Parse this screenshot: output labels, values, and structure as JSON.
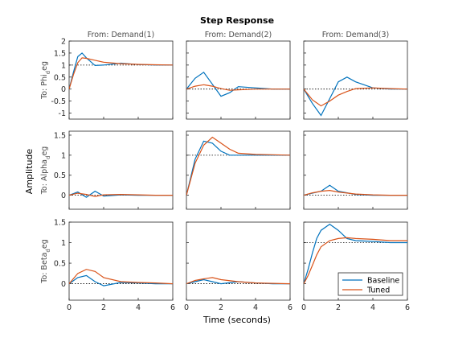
{
  "chart_data": {
    "type": "line",
    "title": "Step Response",
    "xlabel": "Time (seconds)",
    "ylabel": "Amplitude",
    "grid": false,
    "legend_placement": "bottom-right (in bottom-right subplot)",
    "colors": {
      "Baseline": "#0072BD",
      "Tuned": "#D95319",
      "reference": "#000000"
    },
    "xlim": [
      0,
      6
    ],
    "xticks": [
      0,
      2,
      4,
      6
    ],
    "columns": [
      "From: Demand(1)",
      "From: Demand(2)",
      "From: Demand(3)"
    ],
    "rows": [
      {
        "label": "To: Phi_deg",
        "ylim": [
          -1.25,
          2.0
        ],
        "yticks": [
          -1,
          -0.5,
          0,
          0.5,
          1,
          1.5,
          2
        ]
      },
      {
        "label": "To: Alpha_deg",
        "ylim": [
          -0.35,
          1.6
        ],
        "yticks": [
          0,
          0.5,
          1,
          1.5
        ]
      },
      {
        "label": "To: Beta_deg",
        "ylim": [
          -0.4,
          1.5
        ],
        "yticks": [
          0,
          0.5,
          1,
          1.5
        ]
      }
    ],
    "legend": [
      "Baseline",
      "Tuned"
    ],
    "panels": [
      {
        "row": 0,
        "col": 0,
        "reference": 1,
        "series": [
          {
            "name": "Baseline",
            "x": [
              0,
              0.25,
              0.5,
              0.75,
              1,
              1.5,
              2,
              3,
              4,
              5,
              6
            ],
            "y": [
              0,
              0.7,
              1.35,
              1.5,
              1.3,
              0.98,
              1.0,
              1.08,
              1.02,
              1.0,
              1.0
            ]
          },
          {
            "name": "Tuned",
            "x": [
              0,
              0.25,
              0.5,
              0.75,
              1,
              1.5,
              2,
              3,
              4,
              5,
              6
            ],
            "y": [
              0,
              0.6,
              1.1,
              1.3,
              1.28,
              1.2,
              1.12,
              1.06,
              1.03,
              1.01,
              1.0
            ]
          }
        ]
      },
      {
        "row": 0,
        "col": 1,
        "reference": 0,
        "series": [
          {
            "name": "Baseline",
            "x": [
              0,
              0.5,
              1,
              1.5,
              2,
              2.5,
              3,
              4,
              5,
              6
            ],
            "y": [
              0,
              0.45,
              0.7,
              0.2,
              -0.3,
              -0.15,
              0.1,
              0.05,
              0,
              0
            ]
          },
          {
            "name": "Tuned",
            "x": [
              0,
              0.5,
              1,
              1.5,
              2,
              2.5,
              3,
              4,
              5,
              6
            ],
            "y": [
              0,
              0.12,
              0.18,
              0.12,
              0.02,
              -0.05,
              -0.03,
              0,
              0,
              0
            ]
          }
        ]
      },
      {
        "row": 0,
        "col": 2,
        "reference": 0,
        "series": [
          {
            "name": "Baseline",
            "x": [
              0,
              0.5,
              1,
              1.5,
              2,
              2.5,
              3,
              4,
              5,
              6
            ],
            "y": [
              0,
              -0.6,
              -1.1,
              -0.4,
              0.3,
              0.5,
              0.3,
              0.05,
              0,
              0
            ]
          },
          {
            "name": "Tuned",
            "x": [
              0,
              0.5,
              1,
              1.5,
              2,
              2.5,
              3,
              4,
              5,
              6
            ],
            "y": [
              0,
              -0.45,
              -0.7,
              -0.5,
              -0.25,
              -0.1,
              0.02,
              0.05,
              0.02,
              0
            ]
          }
        ]
      },
      {
        "row": 1,
        "col": 0,
        "reference": 0,
        "series": [
          {
            "name": "Baseline",
            "x": [
              0,
              0.5,
              1,
              1.5,
              2,
              3,
              4,
              5,
              6
            ],
            "y": [
              0,
              0.08,
              -0.05,
              0.1,
              -0.02,
              0.01,
              0,
              0,
              0
            ]
          },
          {
            "name": "Tuned",
            "x": [
              0,
              0.5,
              1,
              1.5,
              2,
              3,
              4,
              5,
              6
            ],
            "y": [
              0,
              0.05,
              0.02,
              -0.03,
              0.01,
              0.02,
              0.01,
              0,
              0
            ]
          }
        ]
      },
      {
        "row": 1,
        "col": 1,
        "reference": 1,
        "series": [
          {
            "name": "Baseline",
            "x": [
              0,
              0.25,
              0.5,
              1,
              1.5,
              2,
              2.5,
              3,
              4,
              5,
              6
            ],
            "y": [
              0,
              0.45,
              0.9,
              1.35,
              1.3,
              1.1,
              1.0,
              1.0,
              1.0,
              1.0,
              1.0
            ]
          },
          {
            "name": "Tuned",
            "x": [
              0,
              0.25,
              0.5,
              1,
              1.5,
              2,
              2.5,
              3,
              4,
              5,
              6
            ],
            "y": [
              0,
              0.4,
              0.8,
              1.25,
              1.45,
              1.3,
              1.15,
              1.05,
              1.02,
              1.01,
              1.0
            ]
          }
        ]
      },
      {
        "row": 1,
        "col": 2,
        "reference": 0,
        "series": [
          {
            "name": "Baseline",
            "x": [
              0,
              0.5,
              1,
              1.5,
              2,
              3,
              4,
              5,
              6
            ],
            "y": [
              0,
              0.05,
              0.1,
              0.25,
              0.1,
              0.02,
              0,
              0,
              0
            ]
          },
          {
            "name": "Tuned",
            "x": [
              0,
              0.5,
              1,
              1.5,
              2,
              3,
              4,
              5,
              6
            ],
            "y": [
              0,
              0.06,
              0.1,
              0.12,
              0.08,
              0.03,
              0.01,
              0,
              0
            ]
          }
        ]
      },
      {
        "row": 2,
        "col": 0,
        "reference": 0,
        "series": [
          {
            "name": "Baseline",
            "x": [
              0,
              0.5,
              1,
              1.5,
              2,
              3,
              4,
              5,
              6
            ],
            "y": [
              0,
              0.15,
              0.2,
              0.05,
              -0.05,
              0.03,
              0.02,
              0,
              0
            ]
          },
          {
            "name": "Tuned",
            "x": [
              0,
              0.5,
              1,
              1.5,
              2,
              3,
              4,
              5,
              6
            ],
            "y": [
              0,
              0.25,
              0.35,
              0.3,
              0.15,
              0.05,
              0.03,
              0.02,
              0
            ]
          }
        ]
      },
      {
        "row": 2,
        "col": 1,
        "reference": 0,
        "series": [
          {
            "name": "Baseline",
            "x": [
              0,
              0.5,
              1,
              1.5,
              2,
              3,
              4,
              5,
              6
            ],
            "y": [
              0,
              0.05,
              0.1,
              0.05,
              0.0,
              0.05,
              0.02,
              0,
              0
            ]
          },
          {
            "name": "Tuned",
            "x": [
              0,
              0.5,
              1,
              1.5,
              2,
              3,
              4,
              5,
              6
            ],
            "y": [
              0,
              0.08,
              0.12,
              0.15,
              0.1,
              0.05,
              0.02,
              0.01,
              0
            ]
          }
        ]
      },
      {
        "row": 2,
        "col": 2,
        "reference": 1,
        "series": [
          {
            "name": "Baseline",
            "x": [
              0,
              0.25,
              0.5,
              0.75,
              1,
              1.5,
              2,
              2.5,
              3,
              4,
              5,
              6
            ],
            "y": [
              0,
              0.35,
              0.75,
              1.1,
              1.3,
              1.45,
              1.3,
              1.1,
              1.05,
              1.03,
              1.0,
              1.0
            ]
          },
          {
            "name": "Tuned",
            "x": [
              0,
              0.25,
              0.5,
              0.75,
              1,
              1.5,
              2,
              2.5,
              3,
              4,
              5,
              6
            ],
            "y": [
              0,
              0.2,
              0.45,
              0.7,
              0.9,
              1.05,
              1.1,
              1.12,
              1.1,
              1.08,
              1.05,
              1.05
            ]
          }
        ]
      }
    ]
  }
}
